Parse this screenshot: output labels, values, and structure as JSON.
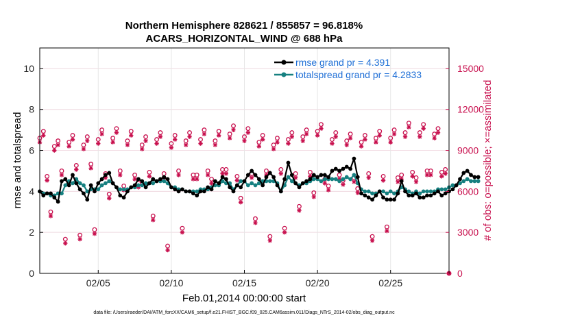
{
  "chart_data": {
    "type": "line",
    "title": "Northern Hemisphere 828621 / 855857 = 96.818%",
    "subtitle": "ACARS_HORIZONTAL_WIND @ 688 hPa",
    "xlabel": "Feb.01,2014 00:00:00 start",
    "ylabel_left": "rmse and totalspread",
    "ylabel_right": "# of obs: o=possible; ×=assimilated",
    "xlim": [
      1,
      29
    ],
    "ylim_left": [
      0,
      11
    ],
    "ylim_right": [
      0,
      16500
    ],
    "x_ticks": [
      5,
      10,
      15,
      20,
      25
    ],
    "x_tick_labels": [
      "02/05",
      "02/10",
      "02/15",
      "02/20",
      "02/25"
    ],
    "y_ticks_left": [
      0,
      2,
      4,
      6,
      8,
      10
    ],
    "y_ticks_right": [
      0,
      3000,
      6000,
      9000,
      12000,
      15000
    ],
    "obs_cycle_hours": [
      0,
      6,
      12,
      18
    ],
    "obs_daily": {
      "days": [
        1,
        2,
        3,
        4,
        5,
        6,
        7,
        8,
        9,
        10,
        11,
        12,
        13,
        14,
        15,
        16,
        17,
        18,
        19,
        20,
        21,
        22,
        23,
        24,
        25,
        26,
        27,
        28
      ],
      "possible_00": [
        9900,
        9300,
        9600,
        9400,
        9800,
        9900,
        9700,
        9400,
        9800,
        9500,
        9700,
        9800,
        9700,
        10200,
        10000,
        9600,
        9400,
        9800,
        10000,
        10400,
        9800,
        9700,
        9600,
        9900,
        9900,
        10300,
        10300,
        10200
      ],
      "possible_06": [
        10400,
        9700,
        10100,
        10000,
        10500,
        10600,
        10400,
        10000,
        10300,
        10100,
        10300,
        10500,
        10400,
        10800,
        10600,
        10100,
        9900,
        10300,
        10500,
        10900,
        10300,
        10200,
        10100,
        10400,
        10500,
        11000,
        10900,
        10600
      ],
      "possible_12": [
        7100,
        7500,
        7900,
        8000,
        7300,
        7500,
        7200,
        7400,
        7300,
        7500,
        7200,
        7500,
        7600,
        7100,
        7300,
        7500,
        7600,
        7300,
        7400,
        6900,
        7200,
        7000,
        7300,
        7100,
        7000,
        7400,
        7500,
        7400
      ],
      "possible_18": [
        4500,
        2500,
        2800,
        3200,
        5800,
        6400,
        6600,
        4200,
        2000,
        3300,
        7200,
        6900,
        7600,
        5500,
        4000,
        2700,
        3300,
        4900,
        5900,
        6400,
        6800,
        6200,
        2700,
        3400,
        7200,
        7000,
        7500,
        7600
      ],
      "assim_00": [
        9600,
        9000,
        9300,
        9100,
        9500,
        9600,
        9400,
        9100,
        9500,
        9200,
        9400,
        9500,
        9400,
        9900,
        9700,
        9300,
        9100,
        9500,
        9700,
        10100,
        9500,
        9400,
        9300,
        9600,
        9600,
        10000,
        10000,
        9900
      ],
      "assim_06": [
        10100,
        9400,
        9800,
        9700,
        10200,
        10300,
        10100,
        9700,
        10000,
        9800,
        10000,
        10200,
        10100,
        10500,
        10300,
        9800,
        9600,
        10000,
        10200,
        10600,
        10000,
        9900,
        9800,
        10100,
        10200,
        10700,
        10600,
        10300
      ],
      "assim_12": [
        6800,
        7200,
        7600,
        7700,
        7000,
        7200,
        6900,
        7100,
        7000,
        7200,
        6900,
        7200,
        7300,
        6800,
        7000,
        7200,
        7300,
        7000,
        7100,
        6600,
        6900,
        6700,
        7000,
        6800,
        6700,
        7100,
        7200,
        7100
      ],
      "assim_18": [
        4200,
        2200,
        2500,
        2900,
        5500,
        6100,
        6300,
        3900,
        1700,
        3000,
        6900,
        6600,
        7300,
        5200,
        3700,
        2400,
        3000,
        4600,
        5600,
        6100,
        6500,
        5900,
        2400,
        3100,
        6900,
        6700,
        7200,
        7300
      ],
      "final_point": {
        "x": 29,
        "possible": 0,
        "assimilated": 0
      }
    },
    "series": [
      {
        "name": "rmse grand pr = 4.391",
        "color": "#000000",
        "x_start": 1.0,
        "x_step": 0.25,
        "values": [
          4.0,
          3.8,
          3.9,
          3.9,
          3.7,
          3.5,
          4.5,
          4.6,
          4.3,
          4.8,
          4.4,
          4.1,
          3.9,
          3.6,
          4.3,
          4.0,
          4.4,
          4.6,
          4.8,
          4.9,
          4.4,
          4.2,
          3.8,
          3.7,
          4.0,
          4.2,
          4.3,
          4.6,
          4.5,
          4.2,
          4.4,
          4.6,
          4.5,
          4.6,
          4.7,
          4.6,
          4.2,
          4.1,
          4.0,
          4.1,
          4.0,
          4.0,
          3.9,
          3.8,
          4.0,
          4.0,
          4.2,
          4.1,
          4.5,
          4.4,
          4.7,
          4.6,
          4.2,
          4.0,
          4.3,
          4.2,
          4.5,
          4.8,
          5.0,
          4.8,
          4.6,
          4.3,
          4.7,
          4.9,
          4.7,
          4.3,
          4.0,
          4.6,
          5.4,
          4.8,
          4.4,
          4.2,
          4.4,
          4.5,
          4.6,
          4.8,
          4.7,
          4.8,
          4.8,
          4.7,
          5.0,
          5.1,
          5.0,
          5.1,
          5.2,
          5.1,
          5.6,
          4.7,
          3.9,
          3.8,
          3.7,
          3.6,
          3.8,
          4.0,
          3.7,
          3.6,
          3.6,
          3.6,
          3.9,
          4.5,
          4.0,
          3.8,
          3.8,
          3.9,
          3.7,
          3.7,
          3.8,
          3.8,
          3.9,
          4.0,
          3.8,
          3.9,
          4.0,
          4.1,
          4.3,
          4.6,
          4.9,
          5.0,
          4.8,
          4.7,
          4.7
        ]
      },
      {
        "name": "totalspread grand pr = 4.2833",
        "color": "#168080",
        "x_start": 1.0,
        "x_step": 0.25,
        "values": [
          4.0,
          3.9,
          3.9,
          3.8,
          3.8,
          3.9,
          3.9,
          4.3,
          4.5,
          4.4,
          4.6,
          4.4,
          4.3,
          4.0,
          4.1,
          4.1,
          4.1,
          4.3,
          4.4,
          4.5,
          4.4,
          4.2,
          4.1,
          4.1,
          4.1,
          4.2,
          4.2,
          4.3,
          4.3,
          4.4,
          4.4,
          4.4,
          4.5,
          4.5,
          4.5,
          4.4,
          4.2,
          4.2,
          4.1,
          4.1,
          4.0,
          4.0,
          4.0,
          4.0,
          4.1,
          4.1,
          4.1,
          4.2,
          4.3,
          4.3,
          4.5,
          4.4,
          4.4,
          4.1,
          4.3,
          4.5,
          4.5,
          4.3,
          4.4,
          4.3,
          4.4,
          4.5,
          4.5,
          4.5,
          4.5,
          4.4,
          4.0,
          4.3,
          4.7,
          4.5,
          4.4,
          4.3,
          4.4,
          4.4,
          4.5,
          4.6,
          4.6,
          4.5,
          4.6,
          4.6,
          4.6,
          4.6,
          4.5,
          4.6,
          4.7,
          4.6,
          4.8,
          4.4,
          4.1,
          4.0,
          4.0,
          3.9,
          3.9,
          4.0,
          4.0,
          3.9,
          4.0,
          3.9,
          4.0,
          4.2,
          4.1,
          4.0,
          3.9,
          4.0,
          3.9,
          4.0,
          4.0,
          4.0,
          4.0,
          4.1,
          4.1,
          4.1,
          4.2,
          4.3,
          4.3,
          4.4,
          4.5,
          4.6,
          4.5,
          4.5,
          4.5
        ]
      }
    ],
    "legend": [
      "rmse grand pr = 4.391",
      "totalspread grand pr = 4.2833"
    ],
    "legend_position": "top-right",
    "grid": true
  },
  "footnote": "data file: /Users/raeder/DAI/ATM_forcXX/CAM6_setup/f.e21.FHIST_BGC.f09_025.CAM6assim.011/Diags_NTrS_2014-02/obs_diag_output.nc",
  "colors": {
    "rmse": "#000000",
    "totalspread": "#168080",
    "obs": "#c8104e",
    "legend_text": "#1f6fd6",
    "grid": "#e6e6e6"
  }
}
